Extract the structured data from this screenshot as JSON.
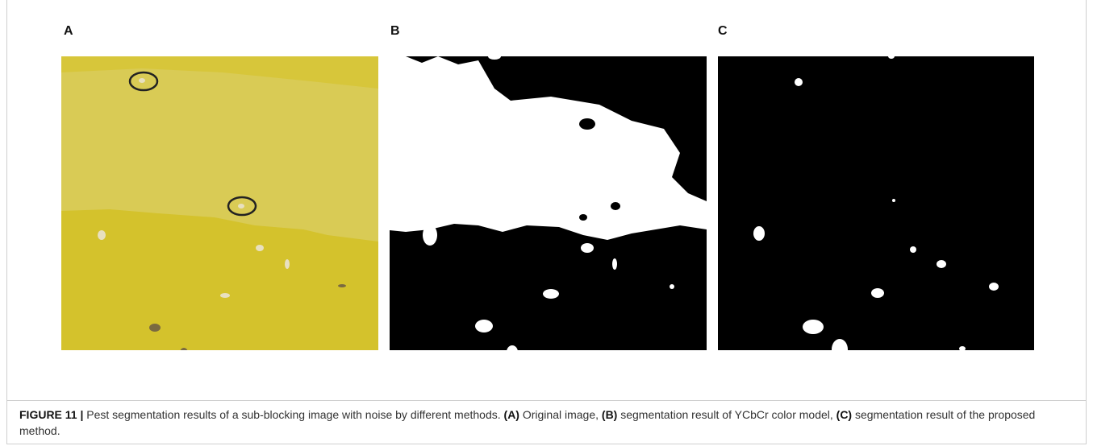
{
  "figure": {
    "panels": [
      {
        "label": "A"
      },
      {
        "label": "B"
      },
      {
        "label": "C"
      }
    ],
    "caption": {
      "label": "FIGURE 11 |",
      "segments": [
        " Pest segmentation results of a sub-blocking image with noise by different methods. ",
        "(A)",
        " Original image, ",
        "(B)",
        " segmentation result of YCbCr color model, ",
        "(C)",
        " segmentation result of the proposed method."
      ]
    }
  }
}
